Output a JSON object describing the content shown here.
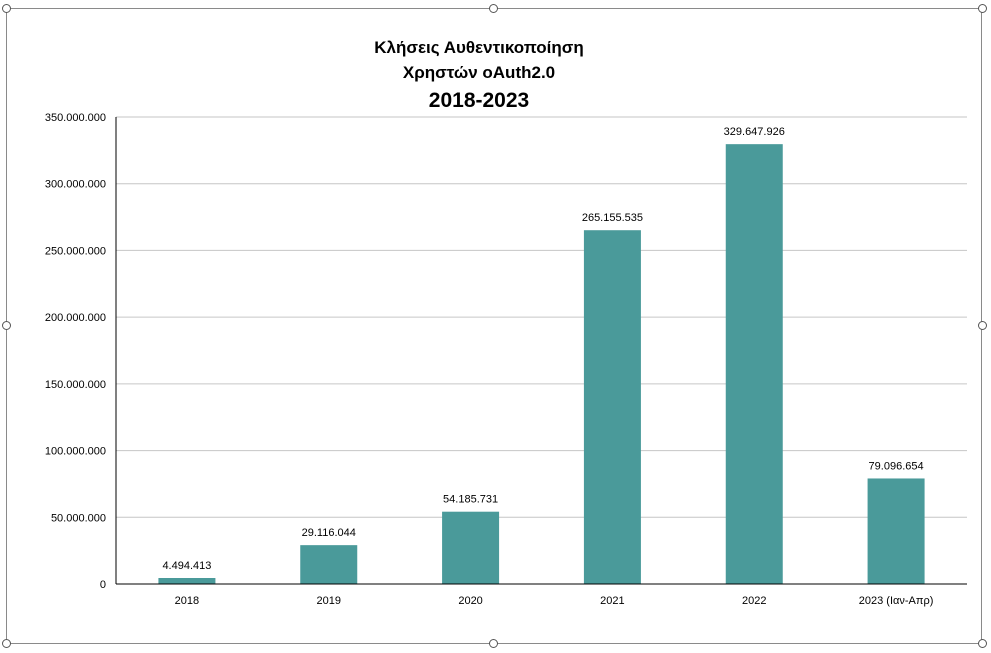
{
  "chart_data": {
    "type": "bar",
    "title": [
      "Κλήσεις Αυθεντικοποίηση",
      "Χρηστών oAuth2.0",
      "2018-2023"
    ],
    "xlabel": "",
    "ylabel": "",
    "categories": [
      "2018",
      "2019",
      "2020",
      "2021",
      "2022",
      "2023 (Ιαν-Απρ)"
    ],
    "values": [
      4494413,
      29116044,
      54185731,
      265155535,
      329647926,
      79096654
    ],
    "data_labels": [
      "4.494.413",
      "29.116.044",
      "54.185.731",
      "265.155.535",
      "329.647.926",
      "79.096.654"
    ],
    "y_ticks": [
      0,
      50000000,
      100000000,
      150000000,
      200000000,
      250000000,
      300000000,
      350000000
    ],
    "y_tick_labels": [
      "0",
      "50.000.000",
      "100.000.000",
      "150.000.000",
      "200.000.000",
      "250.000.000",
      "300.000.000",
      "350.000.000"
    ],
    "ylim": [
      0,
      350000000
    ],
    "grid": true,
    "legend": "none",
    "bar_color": "#4a9a9a"
  }
}
